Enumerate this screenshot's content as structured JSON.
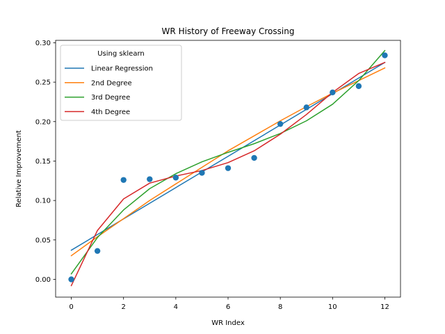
{
  "chart_data": {
    "type": "scatter",
    "title": "WR History of Freeway Crossing",
    "xlabel": "WR Index",
    "ylabel": "Relative Improvement",
    "xlim": [
      -0.6,
      12.6
    ],
    "ylim": [
      -0.0225,
      0.303
    ],
    "xticks": [
      0,
      2,
      4,
      6,
      8,
      10,
      12
    ],
    "xtick_labels": [
      "0",
      "2",
      "4",
      "6",
      "8",
      "10",
      "12"
    ],
    "yticks": [
      0.0,
      0.05,
      0.1,
      0.15,
      0.2,
      0.25,
      0.3
    ],
    "ytick_labels": [
      "0.00",
      "0.05",
      "0.10",
      "0.15",
      "0.20",
      "0.25",
      "0.30"
    ],
    "grid": false,
    "legend": {
      "title": "Using sklearn",
      "placement": "top-left"
    },
    "points": {
      "color": "#1f77b4",
      "x": [
        0,
        1,
        2,
        3,
        4,
        5,
        6,
        7,
        8,
        9,
        10,
        11,
        12
      ],
      "y": [
        0.0,
        0.036,
        0.126,
        0.127,
        0.129,
        0.135,
        0.141,
        0.154,
        0.197,
        0.218,
        0.237,
        0.245,
        0.284
      ]
    },
    "series": [
      {
        "name": "Linear Regression",
        "color": "#1f77b4",
        "x": [
          0,
          12
        ],
        "y": [
          0.037,
          0.275
        ]
      },
      {
        "name": "2nd Degree",
        "color": "#ff7f0e",
        "x": [
          0,
          1,
          2,
          3,
          4,
          5,
          6,
          7,
          8,
          9,
          10,
          11,
          12
        ],
        "y": [
          0.03,
          0.054,
          0.077,
          0.1,
          0.121,
          0.142,
          0.163,
          0.182,
          0.201,
          0.219,
          0.236,
          0.252,
          0.268
        ]
      },
      {
        "name": "3rd Degree",
        "color": "#2ca02c",
        "x": [
          0,
          1,
          2,
          3,
          4,
          5,
          6,
          7,
          8,
          9,
          10,
          11,
          12
        ],
        "y": [
          0.007,
          0.053,
          0.088,
          0.115,
          0.134,
          0.149,
          0.161,
          0.172,
          0.185,
          0.201,
          0.222,
          0.252,
          0.29
        ]
      },
      {
        "name": "4th Degree",
        "color": "#d62728",
        "x": [
          0,
          1,
          2,
          3,
          4,
          5,
          6,
          7,
          8,
          9,
          10,
          11,
          12
        ],
        "y": [
          -0.008,
          0.062,
          0.102,
          0.122,
          0.131,
          0.138,
          0.148,
          0.163,
          0.184,
          0.209,
          0.237,
          0.261,
          0.275
        ]
      }
    ]
  }
}
